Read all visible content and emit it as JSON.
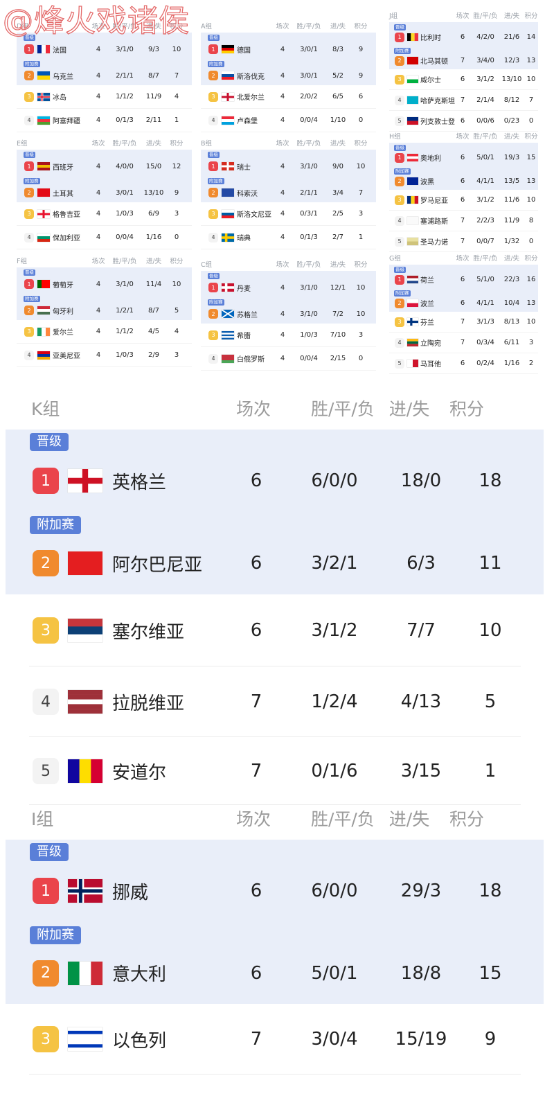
{
  "watermark": "@烽火戏诸侯",
  "headers": {
    "played": "场次",
    "wdl": "胜/平/负",
    "goals": "进/失",
    "points": "积分"
  },
  "tags": {
    "promoted": "晋级",
    "playoff": "附加赛"
  },
  "small_groups": [
    {
      "name": "D组",
      "rows": [
        {
          "rank": "1",
          "status": "promoted",
          "flag": "fr",
          "team": "法国",
          "played": "4",
          "wdl": "3/1/0",
          "goals": "9/3",
          "points": "10"
        },
        {
          "rank": "2",
          "status": "playoff",
          "flag": "ua",
          "team": "乌克兰",
          "played": "4",
          "wdl": "2/1/1",
          "goals": "8/7",
          "points": "7"
        },
        {
          "rank": "3",
          "flag": "is",
          "team": "冰岛",
          "played": "4",
          "wdl": "1/1/2",
          "goals": "11/9",
          "points": "4"
        },
        {
          "rank": "4",
          "flag": "az",
          "team": "阿塞拜疆",
          "played": "4",
          "wdl": "0/1/3",
          "goals": "2/11",
          "points": "1"
        }
      ]
    },
    {
      "name": "E组",
      "rows": [
        {
          "rank": "1",
          "status": "promoted",
          "flag": "es",
          "team": "西班牙",
          "played": "4",
          "wdl": "4/0/0",
          "goals": "15/0",
          "points": "12"
        },
        {
          "rank": "2",
          "status": "playoff",
          "flag": "tr",
          "team": "土耳其",
          "played": "4",
          "wdl": "3/0/1",
          "goals": "13/10",
          "points": "9"
        },
        {
          "rank": "3",
          "flag": "ge",
          "team": "格鲁吉亚",
          "played": "4",
          "wdl": "1/0/3",
          "goals": "6/9",
          "points": "3"
        },
        {
          "rank": "4",
          "flag": "bg",
          "team": "保加利亚",
          "played": "4",
          "wdl": "0/0/4",
          "goals": "1/16",
          "points": "0"
        }
      ]
    },
    {
      "name": "F组",
      "rows": [
        {
          "rank": "1",
          "status": "promoted",
          "flag": "pt",
          "team": "葡萄牙",
          "played": "4",
          "wdl": "3/1/0",
          "goals": "11/4",
          "points": "10"
        },
        {
          "rank": "2",
          "status": "playoff",
          "flag": "hu",
          "team": "匈牙利",
          "played": "4",
          "wdl": "1/2/1",
          "goals": "8/7",
          "points": "5"
        },
        {
          "rank": "3",
          "flag": "ie",
          "team": "爱尔兰",
          "played": "4",
          "wdl": "1/1/2",
          "goals": "4/5",
          "points": "4"
        },
        {
          "rank": "4",
          "flag": "am",
          "team": "亚美尼亚",
          "played": "4",
          "wdl": "1/0/3",
          "goals": "2/9",
          "points": "3"
        }
      ]
    },
    {
      "name": "A组",
      "rows": [
        {
          "rank": "1",
          "status": "promoted",
          "flag": "de",
          "team": "德国",
          "played": "4",
          "wdl": "3/0/1",
          "goals": "8/3",
          "points": "9"
        },
        {
          "rank": "2",
          "status": "playoff",
          "flag": "sk",
          "team": "斯洛伐克",
          "played": "4",
          "wdl": "3/0/1",
          "goals": "5/2",
          "points": "9"
        },
        {
          "rank": "3",
          "flag": "nir",
          "team": "北爱尔兰",
          "played": "4",
          "wdl": "2/0/2",
          "goals": "6/5",
          "points": "6"
        },
        {
          "rank": "4",
          "flag": "lu",
          "team": "卢森堡",
          "played": "4",
          "wdl": "0/0/4",
          "goals": "1/10",
          "points": "0"
        }
      ]
    },
    {
      "name": "B组",
      "rows": [
        {
          "rank": "1",
          "status": "promoted",
          "flag": "ch",
          "team": "瑞士",
          "played": "4",
          "wdl": "3/1/0",
          "goals": "9/0",
          "points": "10"
        },
        {
          "rank": "2",
          "status": "playoff",
          "flag": "xk",
          "team": "科索沃",
          "played": "4",
          "wdl": "2/1/1",
          "goals": "3/4",
          "points": "7"
        },
        {
          "rank": "3",
          "flag": "si",
          "team": "斯洛文尼亚",
          "played": "4",
          "wdl": "0/3/1",
          "goals": "2/5",
          "points": "3"
        },
        {
          "rank": "4",
          "flag": "se",
          "team": "瑞典",
          "played": "4",
          "wdl": "0/1/3",
          "goals": "2/7",
          "points": "1"
        }
      ]
    },
    {
      "name": "C组",
      "rows": [
        {
          "rank": "1",
          "status": "promoted",
          "flag": "dk",
          "team": "丹麦",
          "played": "4",
          "wdl": "3/1/0",
          "goals": "12/1",
          "points": "10"
        },
        {
          "rank": "2",
          "status": "playoff",
          "flag": "sco",
          "team": "苏格兰",
          "played": "4",
          "wdl": "3/1/0",
          "goals": "7/2",
          "points": "10"
        },
        {
          "rank": "3",
          "flag": "gr",
          "team": "希腊",
          "played": "4",
          "wdl": "1/0/3",
          "goals": "7/10",
          "points": "3"
        },
        {
          "rank": "4",
          "flag": "by",
          "team": "白俄罗斯",
          "played": "4",
          "wdl": "0/0/4",
          "goals": "2/15",
          "points": "0"
        }
      ]
    },
    {
      "name": "J组",
      "rows": [
        {
          "rank": "1",
          "status": "promoted",
          "flag": "be",
          "team": "比利时",
          "played": "6",
          "wdl": "4/2/0",
          "goals": "21/6",
          "points": "14"
        },
        {
          "rank": "2",
          "status": "playoff",
          "flag": "mk",
          "team": "北马其顿",
          "played": "7",
          "wdl": "3/4/0",
          "goals": "12/3",
          "points": "13"
        },
        {
          "rank": "3",
          "flag": "wal",
          "team": "威尔士",
          "played": "6",
          "wdl": "3/1/2",
          "goals": "13/10",
          "points": "10"
        },
        {
          "rank": "4",
          "flag": "kz",
          "team": "哈萨克斯坦",
          "played": "7",
          "wdl": "2/1/4",
          "goals": "8/12",
          "points": "7"
        },
        {
          "rank": "5",
          "flag": "li",
          "team": "列支敦士登",
          "played": "6",
          "wdl": "0/0/6",
          "goals": "0/23",
          "points": "0"
        }
      ]
    },
    {
      "name": "H组",
      "rows": [
        {
          "rank": "1",
          "status": "promoted",
          "flag": "at",
          "team": "奥地利",
          "played": "6",
          "wdl": "5/0/1",
          "goals": "19/3",
          "points": "15"
        },
        {
          "rank": "2",
          "status": "playoff",
          "flag": "ba",
          "team": "波黑",
          "played": "6",
          "wdl": "4/1/1",
          "goals": "13/5",
          "points": "13"
        },
        {
          "rank": "3",
          "flag": "ro",
          "team": "罗马尼亚",
          "played": "6",
          "wdl": "3/1/2",
          "goals": "11/6",
          "points": "10"
        },
        {
          "rank": "4",
          "flag": "cy",
          "team": "塞浦路斯",
          "played": "7",
          "wdl": "2/2/3",
          "goals": "11/9",
          "points": "8"
        },
        {
          "rank": "5",
          "flag": "sm",
          "team": "圣马力诺",
          "played": "7",
          "wdl": "0/0/7",
          "goals": "1/32",
          "points": "0"
        }
      ]
    },
    {
      "name": "G组",
      "rows": [
        {
          "rank": "1",
          "status": "promoted",
          "flag": "nl",
          "team": "荷兰",
          "played": "6",
          "wdl": "5/1/0",
          "goals": "22/3",
          "points": "16"
        },
        {
          "rank": "2",
          "status": "playoff",
          "flag": "pl",
          "team": "波兰",
          "played": "6",
          "wdl": "4/1/1",
          "goals": "10/4",
          "points": "13"
        },
        {
          "rank": "3",
          "flag": "fi",
          "team": "芬兰",
          "played": "7",
          "wdl": "3/1/3",
          "goals": "8/13",
          "points": "10"
        },
        {
          "rank": "4",
          "flag": "lt",
          "team": "立陶宛",
          "played": "7",
          "wdl": "0/3/4",
          "goals": "6/11",
          "points": "3"
        },
        {
          "rank": "5",
          "flag": "mt",
          "team": "马耳他",
          "played": "6",
          "wdl": "0/2/4",
          "goals": "1/16",
          "points": "2"
        }
      ]
    }
  ],
  "large_groups": [
    {
      "name": "K组",
      "rows": [
        {
          "rank": "1",
          "status": "promoted",
          "flag": "en",
          "team": "英格兰",
          "played": "6",
          "wdl": "6/0/0",
          "goals": "18/0",
          "points": "18"
        },
        {
          "rank": "2",
          "status": "playoff",
          "flag": "al",
          "team": "阿尔巴尼亚",
          "played": "6",
          "wdl": "3/2/1",
          "goals": "6/3",
          "points": "11"
        },
        {
          "rank": "3",
          "flag": "rs",
          "team": "塞尔维亚",
          "played": "6",
          "wdl": "3/1/2",
          "goals": "7/7",
          "points": "10"
        },
        {
          "rank": "4",
          "flag": "lv",
          "team": "拉脱维亚",
          "played": "7",
          "wdl": "1/2/4",
          "goals": "4/13",
          "points": "5"
        },
        {
          "rank": "5",
          "flag": "ad",
          "team": "安道尔",
          "played": "7",
          "wdl": "0/1/6",
          "goals": "3/15",
          "points": "1"
        }
      ]
    },
    {
      "name": "I组",
      "rows": [
        {
          "rank": "1",
          "status": "promoted",
          "flag": "no",
          "team": "挪威",
          "played": "6",
          "wdl": "6/0/0",
          "goals": "29/3",
          "points": "18"
        },
        {
          "rank": "2",
          "status": "playoff",
          "flag": "it",
          "team": "意大利",
          "played": "6",
          "wdl": "5/0/1",
          "goals": "18/8",
          "points": "15"
        },
        {
          "rank": "3",
          "flag": "il",
          "team": "以色列",
          "played": "7",
          "wdl": "3/0/4",
          "goals": "15/19",
          "points": "9"
        }
      ]
    }
  ]
}
